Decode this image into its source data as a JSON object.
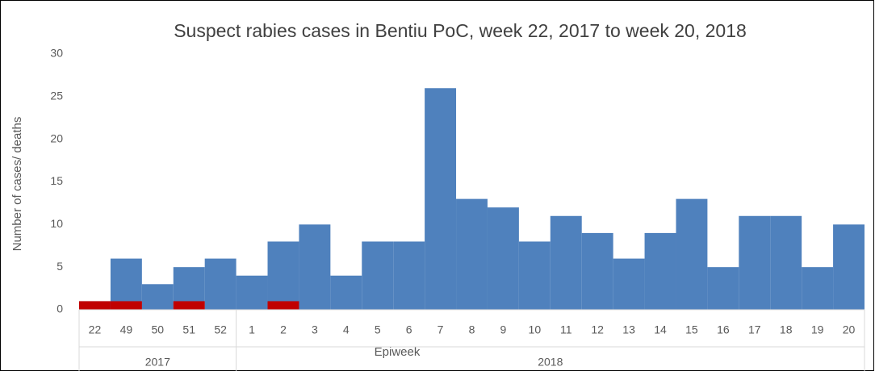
{
  "chart_data": {
    "type": "bar",
    "title": "Suspect rabies cases in Bentiu PoC, week 22, 2017 to week 20, 2018",
    "x_label": "Epiweek",
    "y_label": "Number of cases/ deaths",
    "categories": [
      "22",
      "49",
      "50",
      "51",
      "52",
      "1",
      "2",
      "3",
      "4",
      "5",
      "6",
      "7",
      "8",
      "9",
      "10",
      "11",
      "12",
      "13",
      "14",
      "15",
      "16",
      "17",
      "18",
      "19",
      "20"
    ],
    "category_groups": [
      "2017",
      "2017",
      "2017",
      "2017",
      "2017",
      "2018",
      "2018",
      "2018",
      "2018",
      "2018",
      "2018",
      "2018",
      "2018",
      "2018",
      "2018",
      "2018",
      "2018",
      "2018",
      "2018",
      "2018",
      "2018",
      "2018",
      "2018",
      "2018",
      "2018"
    ],
    "series": [
      {
        "color": "#4f81bd",
        "values": [
          1,
          6,
          3,
          5,
          6,
          4,
          8,
          10,
          4,
          8,
          8,
          26,
          13,
          12,
          8,
          11,
          9,
          6,
          9,
          13,
          5,
          11,
          11,
          5,
          10
        ]
      },
      {
        "color": "#c00000",
        "values": [
          1,
          1,
          0,
          1,
          0,
          0,
          1,
          0,
          0,
          0,
          0,
          0,
          0,
          0,
          0,
          0,
          0,
          0,
          0,
          0,
          0,
          0,
          0,
          0,
          0
        ]
      }
    ],
    "ylim": [
      0,
      30
    ],
    "yticks": [
      0,
      5,
      10,
      15,
      20,
      25,
      30
    ],
    "grid": false
  }
}
